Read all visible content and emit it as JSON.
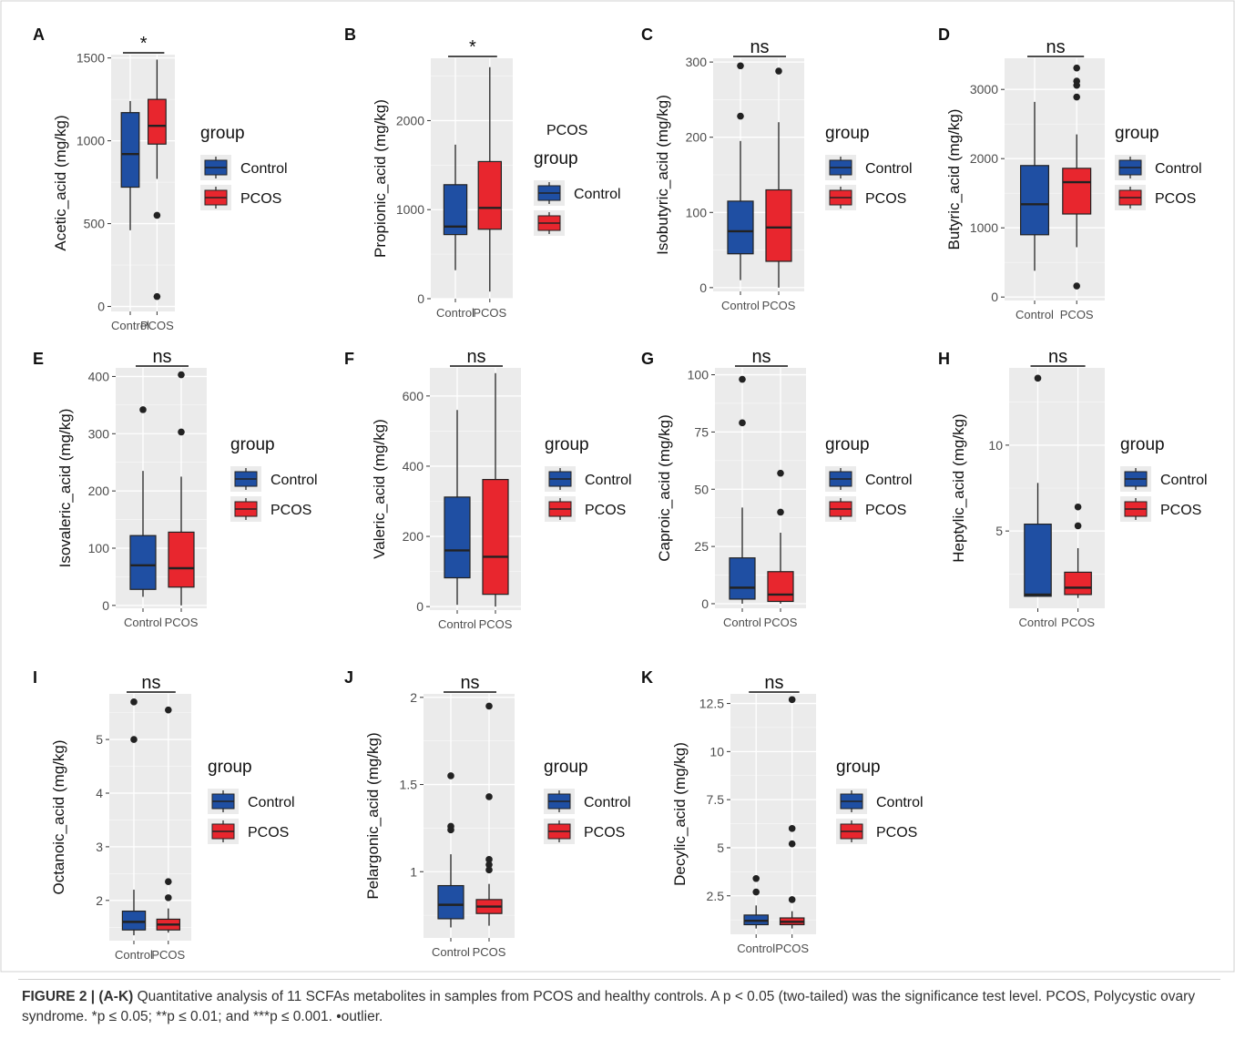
{
  "legend": {
    "title": "group",
    "items": [
      "Control",
      "PCOS"
    ],
    "stray_label": "PCOS"
  },
  "colors": {
    "control": "#1f4fa3",
    "pcos": "#e8262e",
    "panel_bg": "#ebebeb",
    "grid": "#ffffff",
    "point": "#222222"
  },
  "chart_data": [
    {
      "panel": "A",
      "type": "box",
      "ylabel": "Acetic_acid (mg/kg)",
      "categories": [
        "Control",
        "PCOS"
      ],
      "yticks": [
        0,
        500,
        1000,
        1500
      ],
      "ylim": [
        -30,
        1520
      ],
      "sig": "*",
      "boxes": [
        {
          "group": "Control",
          "whisker_low": 460,
          "q1": 720,
          "median": 920,
          "q3": 1170,
          "whisker_high": 1240,
          "outliers": []
        },
        {
          "group": "PCOS",
          "whisker_low": 770,
          "q1": 980,
          "median": 1090,
          "q3": 1250,
          "whisker_high": 1490,
          "outliers": [
            550,
            60
          ]
        }
      ]
    },
    {
      "panel": "B",
      "type": "box",
      "ylabel": "Propionic_acid (mg/kg)",
      "categories": [
        "Control",
        "PCOS"
      ],
      "yticks": [
        0,
        1000,
        2000
      ],
      "ylim": [
        0,
        2700
      ],
      "sig": "*",
      "boxes": [
        {
          "group": "Control",
          "whisker_low": 320,
          "q1": 720,
          "median": 810,
          "q3": 1280,
          "whisker_high": 1730,
          "outliers": []
        },
        {
          "group": "PCOS",
          "whisker_low": 80,
          "q1": 780,
          "median": 1020,
          "q3": 1540,
          "whisker_high": 2600,
          "outliers": []
        }
      ]
    },
    {
      "panel": "C",
      "type": "box",
      "ylabel": "Isobutyric_acid (mg/kg)",
      "categories": [
        "Control",
        "PCOS"
      ],
      "yticks": [
        0,
        100,
        200,
        300
      ],
      "ylim": [
        -5,
        305
      ],
      "sig": "ns",
      "boxes": [
        {
          "group": "Control",
          "whisker_low": 10,
          "q1": 45,
          "median": 75,
          "q3": 115,
          "whisker_high": 195,
          "outliers": [
            295,
            228
          ]
        },
        {
          "group": "PCOS",
          "whisker_low": 0,
          "q1": 35,
          "median": 80,
          "q3": 130,
          "whisker_high": 220,
          "outliers": [
            288
          ]
        }
      ]
    },
    {
      "panel": "D",
      "type": "box",
      "ylabel": "Butyric_acid (mg/kg)",
      "categories": [
        "Control",
        "PCOS"
      ],
      "yticks": [
        0,
        1000,
        2000,
        3000
      ],
      "ylim": [
        -50,
        3450
      ],
      "sig": "ns",
      "boxes": [
        {
          "group": "Control",
          "whisker_low": 380,
          "q1": 900,
          "median": 1340,
          "q3": 1900,
          "whisker_high": 2820,
          "outliers": []
        },
        {
          "group": "PCOS",
          "whisker_low": 720,
          "q1": 1200,
          "median": 1660,
          "q3": 1860,
          "whisker_high": 2350,
          "outliers": [
            3310,
            3120,
            3060,
            2890,
            160
          ]
        }
      ]
    },
    {
      "panel": "E",
      "type": "box",
      "ylabel": "Isovaleric_acid (mg/kg)",
      "categories": [
        "Control",
        "PCOS"
      ],
      "yticks": [
        0,
        100,
        200,
        300,
        400
      ],
      "ylim": [
        -5,
        415
      ],
      "sig": "ns",
      "boxes": [
        {
          "group": "Control",
          "whisker_low": 15,
          "q1": 28,
          "median": 70,
          "q3": 122,
          "whisker_high": 235,
          "outliers": [
            342
          ]
        },
        {
          "group": "PCOS",
          "whisker_low": 0,
          "q1": 32,
          "median": 65,
          "q3": 128,
          "whisker_high": 225,
          "outliers": [
            403,
            303
          ]
        }
      ]
    },
    {
      "panel": "F",
      "type": "box",
      "ylabel": "Valeric_acid (mg/kg)",
      "categories": [
        "Control",
        "PCOS"
      ],
      "yticks": [
        0,
        200,
        400,
        600
      ],
      "ylim": [
        -10,
        680
      ],
      "sig": "ns",
      "boxes": [
        {
          "group": "Control",
          "whisker_low": 5,
          "q1": 82,
          "median": 160,
          "q3": 312,
          "whisker_high": 560,
          "outliers": []
        },
        {
          "group": "PCOS",
          "whisker_low": 0,
          "q1": 35,
          "median": 142,
          "q3": 362,
          "whisker_high": 665,
          "outliers": []
        }
      ]
    },
    {
      "panel": "G",
      "type": "box",
      "ylabel": "Caproic_acid (mg/kg)",
      "categories": [
        "Control",
        "PCOS"
      ],
      "yticks": [
        0,
        25,
        50,
        75,
        100
      ],
      "ylim": [
        -2,
        103
      ],
      "sig": "ns",
      "boxes": [
        {
          "group": "Control",
          "whisker_low": 0,
          "q1": 2,
          "median": 7,
          "q3": 20,
          "whisker_high": 42,
          "outliers": [
            98,
            79
          ]
        },
        {
          "group": "PCOS",
          "whisker_low": 0,
          "q1": 1,
          "median": 4,
          "q3": 14,
          "whisker_high": 31,
          "outliers": [
            57,
            40
          ]
        }
      ]
    },
    {
      "panel": "H",
      "type": "box",
      "ylabel": "Heptylic_acid (mg/kg)",
      "categories": [
        "Control",
        "PCOS"
      ],
      "yticks": [
        5,
        10
      ],
      "ylim": [
        0.5,
        14.5
      ],
      "sig": "ns",
      "boxes": [
        {
          "group": "Control",
          "whisker_low": 1.2,
          "q1": 1.2,
          "median": 1.3,
          "q3": 5.4,
          "whisker_high": 7.8,
          "outliers": [
            13.9
          ]
        },
        {
          "group": "PCOS",
          "whisker_low": 1.1,
          "q1": 1.3,
          "median": 1.7,
          "q3": 2.6,
          "whisker_high": 4.0,
          "outliers": [
            6.4,
            5.3
          ]
        }
      ]
    },
    {
      "panel": "I",
      "type": "box",
      "ylabel": "Octanoic_acid (mg/kg)",
      "categories": [
        "Control",
        "PCOS"
      ],
      "yticks": [
        2,
        3,
        4,
        5
      ],
      "ylim": [
        1.25,
        5.85
      ],
      "sig": "ns",
      "boxes": [
        {
          "group": "Control",
          "whisker_low": 1.35,
          "q1": 1.45,
          "median": 1.6,
          "q3": 1.8,
          "whisker_high": 2.2,
          "outliers": [
            5.7,
            5.0
          ]
        },
        {
          "group": "PCOS",
          "whisker_low": 1.4,
          "q1": 1.45,
          "median": 1.55,
          "q3": 1.65,
          "whisker_high": 1.85,
          "outliers": [
            5.55,
            2.35,
            2.05
          ]
        }
      ]
    },
    {
      "panel": "J",
      "type": "box",
      "ylabel": "Pelargonic_acid (mg/kg)",
      "categories": [
        "Control",
        "PCOS"
      ],
      "yticks": [
        1.0,
        1.5,
        2.0
      ],
      "ylim": [
        0.62,
        2.02
      ],
      "sig": "ns",
      "boxes": [
        {
          "group": "Control",
          "whisker_low": 0.68,
          "q1": 0.73,
          "median": 0.81,
          "q3": 0.92,
          "whisker_high": 1.1,
          "outliers": [
            1.55,
            1.26,
            1.24
          ]
        },
        {
          "group": "PCOS",
          "whisker_low": 0.69,
          "q1": 0.76,
          "median": 0.8,
          "q3": 0.84,
          "whisker_high": 0.93,
          "outliers": [
            1.95,
            1.43,
            1.07,
            1.04,
            1.01
          ]
        }
      ]
    },
    {
      "panel": "K",
      "type": "box",
      "ylabel": "Decylic_acid (mg/kg)",
      "categories": [
        "Control",
        "PCOS"
      ],
      "yticks": [
        2.5,
        5.0,
        7.5,
        10.0,
        12.5
      ],
      "ylim": [
        0.5,
        13.0
      ],
      "sig": "ns",
      "boxes": [
        {
          "group": "Control",
          "whisker_low": 0.8,
          "q1": 1.0,
          "median": 1.2,
          "q3": 1.5,
          "whisker_high": 2.0,
          "outliers": [
            3.4,
            2.7
          ]
        },
        {
          "group": "PCOS",
          "whisker_low": 0.8,
          "q1": 1.0,
          "median": 1.15,
          "q3": 1.35,
          "whisker_high": 1.7,
          "outliers": [
            12.7,
            6.0,
            5.2,
            2.3
          ]
        }
      ]
    }
  ],
  "caption": {
    "lead": "FIGURE 2 | (A-K)",
    "text": " Quantitative analysis of 11 SCFAs metabolites in samples from PCOS and healthy controls. A p < 0.05 (two-tailed) was the significance test level. PCOS, Polycystic ovary syndrome. *p ≤ 0.05; **p ≤ 0.01; and ***p ≤ 0.001. •outlier."
  }
}
